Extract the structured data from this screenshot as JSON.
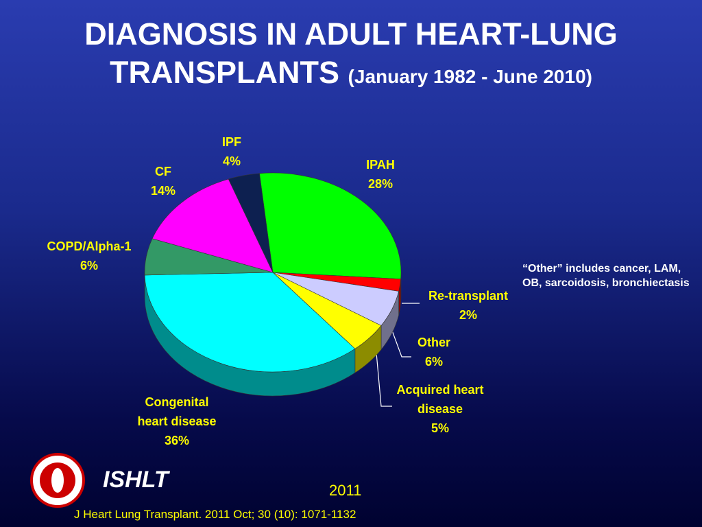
{
  "chart_data": {
    "type": "pie",
    "title": "DIAGNOSIS IN ADULT HEART-LUNG TRANSPLANTS",
    "subtitle": "(January 1982 - June 2010)",
    "categories": [
      "IPAH",
      "Re-transplant",
      "Other",
      "Acquired heart disease",
      "Congenital heart disease",
      "COPD/Alpha-1",
      "CF",
      "IPF"
    ],
    "values": [
      28,
      2,
      6,
      5,
      36,
      6,
      14,
      4
    ],
    "value_labels": [
      "28%",
      "2%",
      "6%",
      "5%",
      "36%",
      "6%",
      "14%",
      "4%"
    ],
    "colors": [
      "#00ff00",
      "#ff0000",
      "#ccccff",
      "#ffff00",
      "#00ffff",
      "#339966",
      "#ff00ff",
      "#0d2050"
    ],
    "note": "“Other” includes cancer, LAM, OB, sarcoidosis, bronchiectasis"
  },
  "footer": {
    "brand": "ISHLT",
    "year": "2011",
    "citation": "J Heart Lung Transplant. 2011 Oct; 30 (10): 1071-1132"
  }
}
